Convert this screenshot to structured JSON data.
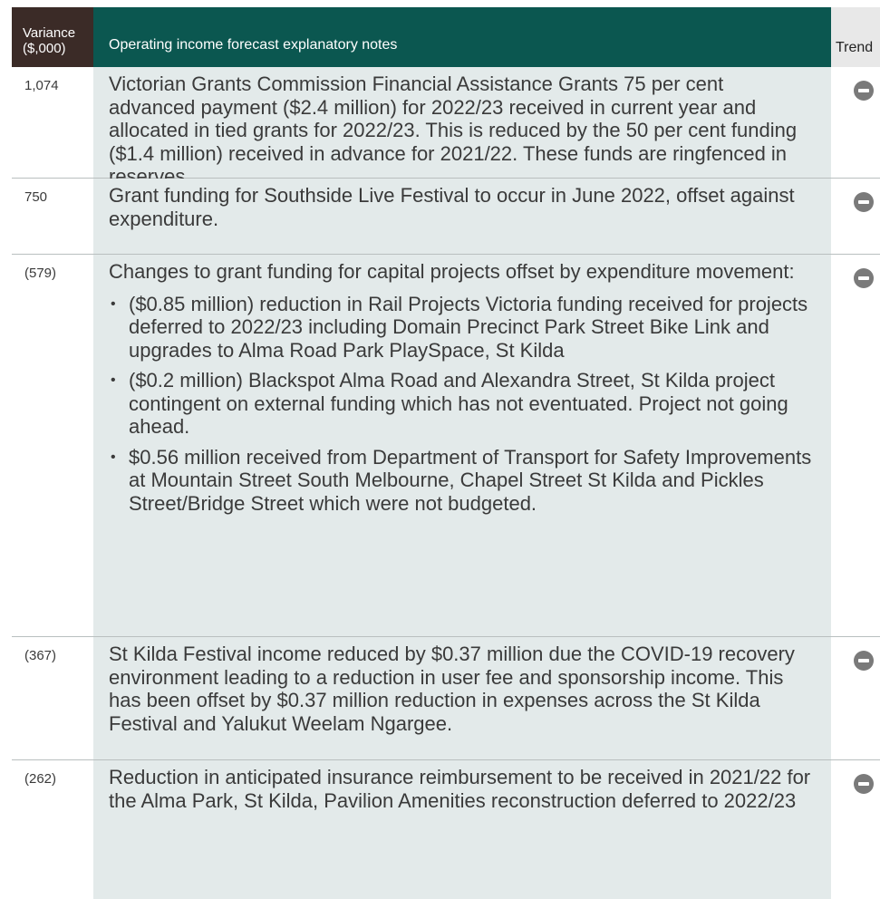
{
  "header": {
    "columns": [
      "Variance ($,000)",
      "Operating income forecast explanatory notes",
      "Trend"
    ]
  },
  "table": {
    "rows": [
      {
        "variance": "1,074",
        "note": "Victorian Grants Commission Financial Assistance Grants 75 per cent advanced payment ($2.4 million) for 2022/23 received in current year and allocated in tied grants for 2022/23. This is reduced by the 50 per cent funding ($1.4 million) received in advance for 2021/22. These funds are ringfenced in reserves."
      },
      {
        "variance": "750",
        "note": "Grant funding for Southside Live Festival to occur in June 2022, offset against expenditure."
      },
      {
        "variance": "(579)",
        "note": "Changes to grant funding for capital projects offset by expenditure movement:",
        "bullets": [
          "($0.85 million) reduction in Rail Projects Victoria funding received for projects deferred to 2022/23 including Domain Precinct Park Street Bike Link and upgrades to Alma Road Park PlaySpace, St Kilda",
          "($0.2 million) Blackspot Alma Road and Alexandra Street, St Kilda project contingent on external funding which has not eventuated. Project not going ahead.",
          "$0.56 million received from Department of Transport for Safety Improvements at Mountain Street South Melbourne, Chapel Street St Kilda and Pickles Street/Bridge Street which were not budgeted."
        ]
      },
      {
        "variance": "(367)",
        "note": "St Kilda Festival income reduced by $0.37 million due the COVID-19 recovery environment leading to a reduction in user fee and sponsorship income. This has been offset by $0.37 million reduction in expenses across the St Kilda Festival and Yalukut Weelam Ngargee."
      },
      {
        "variance": "(262)",
        "note": "Reduction in anticipated insurance reimbursement to be received in 2021/22 for the Alma Park, St Kilda, Pavilion Amenities reconstruction deferred to 2022/23"
      }
    ]
  }
}
